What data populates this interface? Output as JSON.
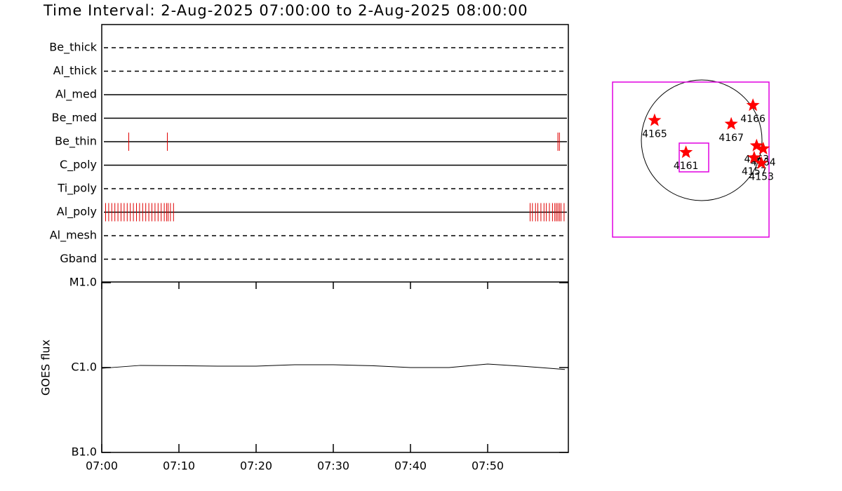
{
  "chart_data": [
    {
      "type": "timeline",
      "title": "Time Interval:  2-Aug-2025 07:00:00 to  2-Aug-2025 08:00:00",
      "categories": [
        "Be_thick",
        "Al_thick",
        "Al_med",
        "Be_med",
        "Be_thin",
        "C_poly",
        "Ti_poly",
        "Al_poly",
        "Al_mesh",
        "Gband"
      ],
      "line_styles": [
        "dashed",
        "dashed",
        "solid",
        "solid",
        "solid",
        "solid",
        "dashed",
        "solid",
        "dashed",
        "dashed"
      ],
      "color": "#e00000",
      "xlim": [
        0,
        60
      ],
      "events": [
        [],
        [],
        [],
        [],
        [
          3.5,
          8.5,
          59.1,
          59.3
        ],
        [],
        [],
        [
          0.5,
          0.9,
          1.3,
          1.7,
          2.1,
          2.5,
          2.9,
          3.3,
          3.7,
          4.1,
          4.5,
          4.9,
          5.3,
          5.7,
          6.1,
          6.5,
          6.9,
          7.3,
          7.7,
          8.1,
          8.4,
          8.6,
          8.9,
          9.3,
          55.5,
          55.8,
          56.2,
          56.5,
          56.9,
          57.3,
          57.6,
          58.0,
          58.4,
          58.7,
          58.9,
          59.1,
          59.3,
          59.5,
          59.9
        ],
        [],
        []
      ]
    },
    {
      "type": "line",
      "y_label": "GOES flux",
      "log_scale": true,
      "color": "#000000",
      "x": [
        0,
        5,
        10,
        15,
        20,
        25,
        30,
        35,
        40,
        45,
        50,
        55,
        60
      ],
      "values": [
        9.8e-07,
        1.06e-06,
        1.05e-06,
        1.04e-06,
        1.04e-06,
        1.08e-06,
        1.08e-06,
        1.05e-06,
        1e-06,
        1e-06,
        1.1e-06,
        1.03e-06,
        9.5e-07
      ],
      "xlim": [
        0,
        60
      ],
      "xticks": [
        {
          "value": 0,
          "label": "07:00"
        },
        {
          "value": 10,
          "label": "07:10"
        },
        {
          "value": 20,
          "label": "07:20"
        },
        {
          "value": 30,
          "label": "07:30"
        },
        {
          "value": 40,
          "label": "07:40"
        },
        {
          "value": 50,
          "label": "07:50"
        }
      ],
      "ylim": [
        1e-07,
        1e-05
      ],
      "yticks": [
        {
          "value": 1e-07,
          "label": "B1.0"
        },
        {
          "value": 1e-06,
          "label": "C1.0"
        },
        {
          "value": 1e-05,
          "label": "M1.0"
        }
      ]
    },
    {
      "type": "map",
      "color": "#ff0000",
      "points": [
        {
          "label": "4165",
          "x": -0.78,
          "y": 0.33
        },
        {
          "label": "4166",
          "x": 0.85,
          "y": 0.58
        },
        {
          "label": "4167",
          "x": 0.49,
          "y": 0.27
        },
        {
          "label": "4161",
          "x": -0.26,
          "y": -0.2
        },
        {
          "label": "4163",
          "x": 0.91,
          "y": -0.09
        },
        {
          "label": "4164",
          "x": 1.02,
          "y": -0.14
        },
        {
          "label": "4157",
          "x": 0.87,
          "y": -0.29
        },
        {
          "label": "4153",
          "x": 0.99,
          "y": -0.38
        }
      ]
    }
  ]
}
